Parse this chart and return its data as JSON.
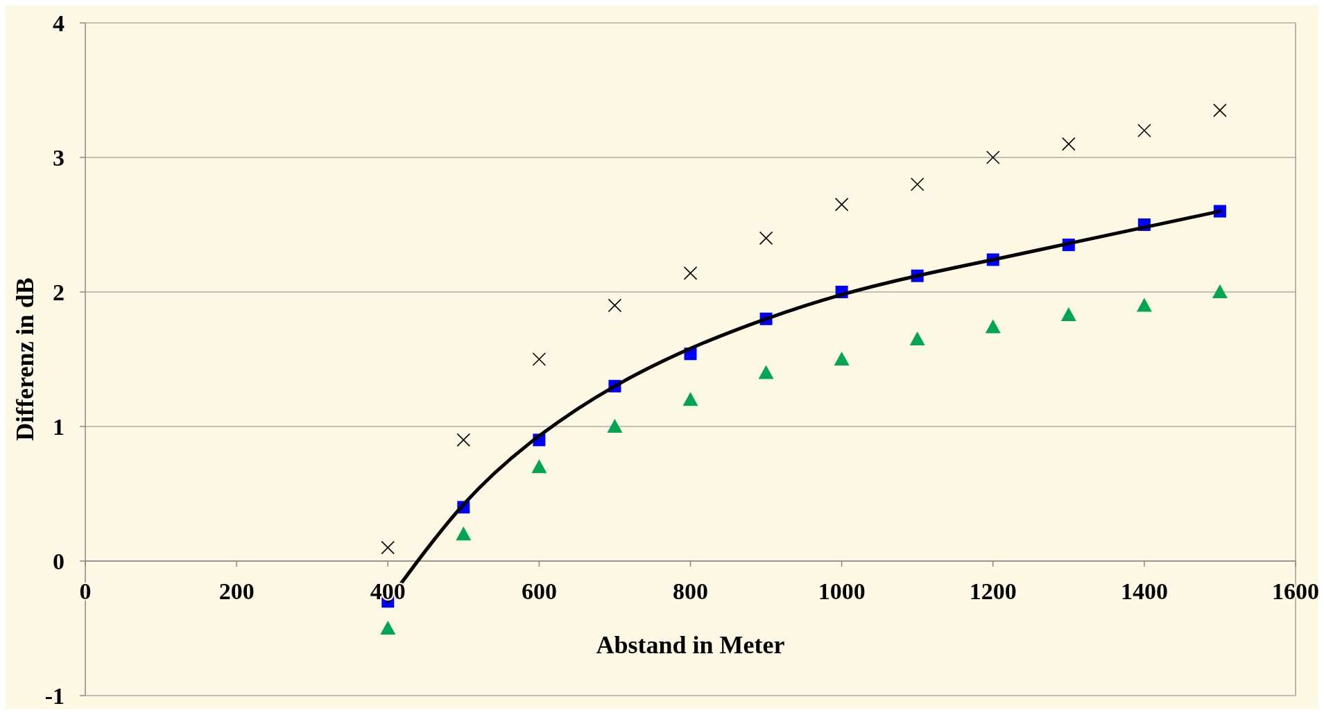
{
  "chart_data": {
    "type": "scatter",
    "xlabel": "Abstand in Meter",
    "ylabel": "Differenz in dB",
    "x": [
      400,
      500,
      600,
      700,
      800,
      900,
      1000,
      1100,
      1200,
      1300,
      1400,
      1500
    ],
    "series": [
      {
        "color": "#000000",
        "marker": "cross",
        "values": [
          0.1,
          0.9,
          1.5,
          1.9,
          2.14,
          2.4,
          2.65,
          2.8,
          3.0,
          3.1,
          3.2,
          3.35
        ]
      },
      {
        "color": "#0000ff",
        "marker": "square",
        "values": [
          -0.3,
          0.4,
          0.9,
          1.3,
          1.54,
          1.8,
          2.0,
          2.12,
          2.24,
          2.35,
          2.5,
          2.6
        ]
      },
      {
        "color": "#00a651",
        "marker": "triangle",
        "values": [
          -0.5,
          0.2,
          0.7,
          1.0,
          1.2,
          1.4,
          1.5,
          1.65,
          1.74,
          1.83,
          1.9,
          2.0
        ]
      },
      {
        "type": "line",
        "color": "#000000",
        "marker": "none",
        "line_style": "solid",
        "x": [
          400,
          500,
          600,
          700,
          800,
          900,
          1000,
          1100,
          1200,
          1300,
          1400,
          1500
        ],
        "values": [
          -0.3,
          0.42,
          0.93,
          1.3,
          1.58,
          1.8,
          1.98,
          2.12,
          2.24,
          2.36,
          2.48,
          2.6
        ]
      }
    ],
    "xlim": [
      0,
      1600
    ],
    "xticks": [
      0,
      200,
      400,
      600,
      800,
      1000,
      1200,
      1400,
      1600
    ],
    "ylim": [
      -1,
      4
    ],
    "yticks": [
      -1,
      0,
      1,
      2,
      3,
      4
    ],
    "grid": "y"
  }
}
